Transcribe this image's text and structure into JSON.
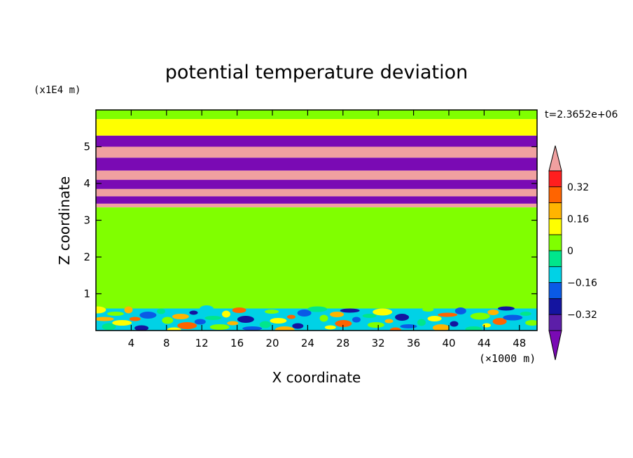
{
  "chart_data": {
    "type": "heatmap",
    "title": "potential temperature deviation",
    "xlabel": "X coordinate",
    "ylabel": "Z coordinate",
    "x_unit": "(×1000 m)",
    "y_unit": "(x1E4 m)",
    "time_label": "t=2.3652e+06",
    "xlim": [
      0,
      50
    ],
    "ylim": [
      0,
      6
    ],
    "x_ticks": [
      4,
      8,
      12,
      16,
      20,
      24,
      28,
      32,
      36,
      40,
      44,
      48
    ],
    "y_ticks": [
      1,
      2,
      3,
      4,
      5
    ],
    "colorbar": {
      "levels": [
        -0.48,
        -0.4,
        -0.32,
        -0.24,
        -0.16,
        -0.08,
        0,
        0.08,
        0.16,
        0.24,
        0.32,
        0.4
      ],
      "colors": [
        "#7a0ab4",
        "#5c1ea8",
        "#1414a0",
        "#0a5ae6",
        "#00d2e6",
        "#00e68c",
        "#80ff00",
        "#ffff00",
        "#ffb400",
        "#ff6400",
        "#ff1e1e",
        "#f0a0a0"
      ],
      "labeled_ticks": [
        "0.32",
        "0.16",
        "0",
        "−0.16",
        "−0.32"
      ],
      "labeled_values": [
        0.32,
        0.16,
        0,
        -0.16,
        -0.32
      ]
    },
    "bands": [
      {
        "z0": 5.75,
        "z1": 6.0,
        "value": 0.0
      },
      {
        "z0": 5.3,
        "z1": 5.75,
        "value": 0.1
      },
      {
        "z0": 5.0,
        "z1": 5.3,
        "value": -0.45
      },
      {
        "z0": 4.7,
        "z1": 5.0,
        "value": 0.4
      },
      {
        "z0": 4.35,
        "z1": 4.7,
        "value": -0.45
      },
      {
        "z0": 4.1,
        "z1": 4.35,
        "value": 0.4
      },
      {
        "z0": 3.85,
        "z1": 4.1,
        "value": -0.45
      },
      {
        "z0": 3.65,
        "z1": 3.85,
        "value": 0.4
      },
      {
        "z0": 3.45,
        "z1": 3.65,
        "value": -0.45
      },
      {
        "z0": 3.35,
        "z1": 3.45,
        "value": 0.4
      },
      {
        "z0": 0.6,
        "z1": 3.35,
        "value": 0.0
      },
      {
        "z0": 0.0,
        "z1": 0.6,
        "value": -0.1
      }
    ]
  }
}
